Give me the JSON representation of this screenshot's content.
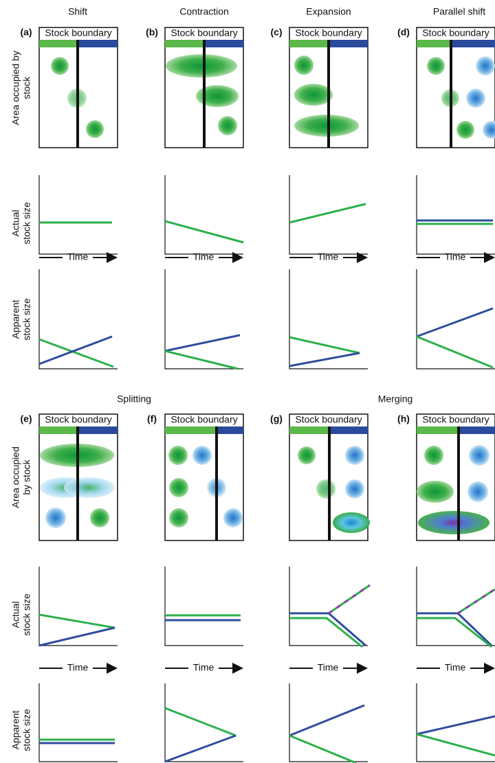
{
  "column_titles": [
    "Shift",
    "Contraction",
    "Expansion",
    "Parallel shift"
  ],
  "group_titles": [
    "Splitting",
    "Merging"
  ],
  "row_labels": {
    "top": {
      "area": [
        "Area occupied by",
        "stock"
      ],
      "actual": [
        "Actual",
        "stock size"
      ],
      "apparent": [
        "Apparent",
        "stock size"
      ]
    },
    "bottom": {
      "area": [
        "Area occupied",
        "by stock"
      ],
      "actual": [
        "Actual",
        "stock size"
      ],
      "apparent": [
        "Apparent",
        "stock size"
      ]
    }
  },
  "panels": [
    {
      "letter": "(a)",
      "boundary_label": "Stock boundary",
      "time_label": "Time"
    },
    {
      "letter": "(b)",
      "boundary_label": "Stock boundary",
      "time_label": "Time"
    },
    {
      "letter": "(c)",
      "boundary_label": "Stock boundary",
      "time_label": "Time"
    },
    {
      "letter": "(d)",
      "boundary_label": "Stock boundary",
      "time_label": "Time"
    },
    {
      "letter": "(e)",
      "boundary_label": "Stock boundary",
      "time_label": "Time"
    },
    {
      "letter": "(f)",
      "boundary_label": "Stock boundary",
      "time_label": "Time"
    },
    {
      "letter": "(g)",
      "boundary_label": "Stock boundary",
      "time_label": "Time"
    },
    {
      "letter": "(h)",
      "boundary_label": "Stock boundary",
      "time_label": "Time"
    }
  ]
}
